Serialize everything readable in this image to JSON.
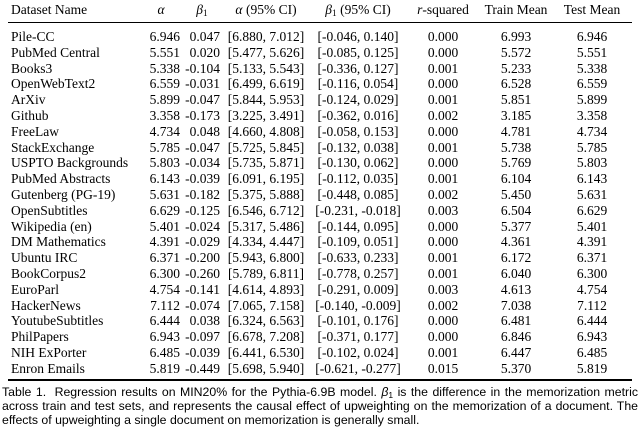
{
  "colors": {
    "text": "#000000",
    "background": "#ffffff",
    "rule": "#000000"
  },
  "table": {
    "header": {
      "dataset": "Dataset Name",
      "alpha": "α",
      "beta": "β",
      "beta_sub": "1",
      "ci_suffix": "(95% CI)",
      "r": "r",
      "r_suffix": "-squared",
      "train": "Train Mean",
      "test": "Test Mean"
    },
    "rows": [
      {
        "name": "Pile-CC",
        "alpha": "6.946",
        "beta1": "0.047",
        "alpha_ci": "[6.880, 7.012]",
        "beta1_ci": "[-0.046, 0.140]",
        "r_squared": "0.000",
        "train_mean": "6.993",
        "test_mean": "6.946"
      },
      {
        "name": "PubMed Central",
        "alpha": "5.551",
        "beta1": "0.020",
        "alpha_ci": "[5.477, 5.626]",
        "beta1_ci": "[-0.085, 0.125]",
        "r_squared": "0.000",
        "train_mean": "5.572",
        "test_mean": "5.551"
      },
      {
        "name": "Books3",
        "alpha": "5.338",
        "beta1": "-0.104",
        "alpha_ci": "[5.133, 5.543]",
        "beta1_ci": "[-0.336, 0.127]",
        "r_squared": "0.001",
        "train_mean": "5.233",
        "test_mean": "5.338"
      },
      {
        "name": "OpenWebText2",
        "alpha": "6.559",
        "beta1": "-0.031",
        "alpha_ci": "[6.499, 6.619]",
        "beta1_ci": "[-0.116, 0.054]",
        "r_squared": "0.000",
        "train_mean": "6.528",
        "test_mean": "6.559"
      },
      {
        "name": "ArXiv",
        "alpha": "5.899",
        "beta1": "-0.047",
        "alpha_ci": "[5.844, 5.953]",
        "beta1_ci": "[-0.124, 0.029]",
        "r_squared": "0.001",
        "train_mean": "5.851",
        "test_mean": "5.899"
      },
      {
        "name": "Github",
        "alpha": "3.358",
        "beta1": "-0.173",
        "alpha_ci": "[3.225, 3.491]",
        "beta1_ci": "[-0.362, 0.016]",
        "r_squared": "0.002",
        "train_mean": "3.185",
        "test_mean": "3.358"
      },
      {
        "name": "FreeLaw",
        "alpha": "4.734",
        "beta1": "0.048",
        "alpha_ci": "[4.660, 4.808]",
        "beta1_ci": "[-0.058, 0.153]",
        "r_squared": "0.000",
        "train_mean": "4.781",
        "test_mean": "4.734"
      },
      {
        "name": "StackExchange",
        "alpha": "5.785",
        "beta1": "-0.047",
        "alpha_ci": "[5.725, 5.845]",
        "beta1_ci": "[-0.132, 0.038]",
        "r_squared": "0.001",
        "train_mean": "5.738",
        "test_mean": "5.785"
      },
      {
        "name": "USPTO Backgrounds",
        "alpha": "5.803",
        "beta1": "-0.034",
        "alpha_ci": "[5.735, 5.871]",
        "beta1_ci": "[-0.130, 0.062]",
        "r_squared": "0.000",
        "train_mean": "5.769",
        "test_mean": "5.803"
      },
      {
        "name": "PubMed Abstracts",
        "alpha": "6.143",
        "beta1": "-0.039",
        "alpha_ci": "[6.091, 6.195]",
        "beta1_ci": "[-0.112, 0.035]",
        "r_squared": "0.001",
        "train_mean": "6.104",
        "test_mean": "6.143"
      },
      {
        "name": "Gutenberg (PG-19)",
        "alpha": "5.631",
        "beta1": "-0.182",
        "alpha_ci": "[5.375, 5.888]",
        "beta1_ci": "[-0.448, 0.085]",
        "r_squared": "0.002",
        "train_mean": "5.450",
        "test_mean": "5.631"
      },
      {
        "name": "OpenSubtitles",
        "alpha": "6.629",
        "beta1": "-0.125",
        "alpha_ci": "[6.546, 6.712]",
        "beta1_ci": "[-0.231, -0.018]",
        "r_squared": "0.003",
        "train_mean": "6.504",
        "test_mean": "6.629"
      },
      {
        "name": "Wikipedia (en)",
        "alpha": "5.401",
        "beta1": "-0.024",
        "alpha_ci": "[5.317, 5.486]",
        "beta1_ci": "[-0.144, 0.095]",
        "r_squared": "0.000",
        "train_mean": "5.377",
        "test_mean": "5.401"
      },
      {
        "name": "DM Mathematics",
        "alpha": "4.391",
        "beta1": "-0.029",
        "alpha_ci": "[4.334, 4.447]",
        "beta1_ci": "[-0.109, 0.051]",
        "r_squared": "0.000",
        "train_mean": "4.361",
        "test_mean": "4.391"
      },
      {
        "name": "Ubuntu IRC",
        "alpha": "6.371",
        "beta1": "-0.200",
        "alpha_ci": "[5.943, 6.800]",
        "beta1_ci": "[-0.633, 0.233]",
        "r_squared": "0.001",
        "train_mean": "6.172",
        "test_mean": "6.371"
      },
      {
        "name": "BookCorpus2",
        "alpha": "6.300",
        "beta1": "-0.260",
        "alpha_ci": "[5.789, 6.811]",
        "beta1_ci": "[-0.778, 0.257]",
        "r_squared": "0.001",
        "train_mean": "6.040",
        "test_mean": "6.300"
      },
      {
        "name": "EuroParl",
        "alpha": "4.754",
        "beta1": "-0.141",
        "alpha_ci": "[4.614, 4.893]",
        "beta1_ci": "[-0.291, 0.009]",
        "r_squared": "0.003",
        "train_mean": "4.613",
        "test_mean": "4.754"
      },
      {
        "name": "HackerNews",
        "alpha": "7.112",
        "beta1": "-0.074",
        "alpha_ci": "[7.065, 7.158]",
        "beta1_ci": "[-0.140, -0.009]",
        "r_squared": "0.002",
        "train_mean": "7.038",
        "test_mean": "7.112"
      },
      {
        "name": "YoutubeSubtitles",
        "alpha": "6.444",
        "beta1": "0.038",
        "alpha_ci": "[6.324, 6.563]",
        "beta1_ci": "[-0.101, 0.176]",
        "r_squared": "0.000",
        "train_mean": "6.481",
        "test_mean": "6.444"
      },
      {
        "name": "PhilPapers",
        "alpha": "6.943",
        "beta1": "-0.097",
        "alpha_ci": "[6.678, 7.208]",
        "beta1_ci": "[-0.371, 0.177]",
        "r_squared": "0.000",
        "train_mean": "6.846",
        "test_mean": "6.943"
      },
      {
        "name": "NIH ExPorter",
        "alpha": "6.485",
        "beta1": "-0.039",
        "alpha_ci": "[6.441, 6.530]",
        "beta1_ci": "[-0.102, 0.024]",
        "r_squared": "0.001",
        "train_mean": "6.447",
        "test_mean": "6.485"
      },
      {
        "name": "Enron Emails",
        "alpha": "5.819",
        "beta1": "-0.449",
        "alpha_ci": "[5.698, 5.940]",
        "beta1_ci": "[-0.621, -0.277]",
        "r_squared": "0.015",
        "train_mean": "5.370",
        "test_mean": "5.819"
      }
    ]
  },
  "caption": {
    "label": "Table 1.",
    "part1": "Regression results on MIN20% for the Pythia-6.9B model.",
    "beta": "β",
    "beta_sub": "1",
    "part2": "is the difference in the memorization metric across train and test sets, and represents the causal effect of upweighting on the memorization of a document. The effects of upweighting a single document on memorization is generally small."
  }
}
